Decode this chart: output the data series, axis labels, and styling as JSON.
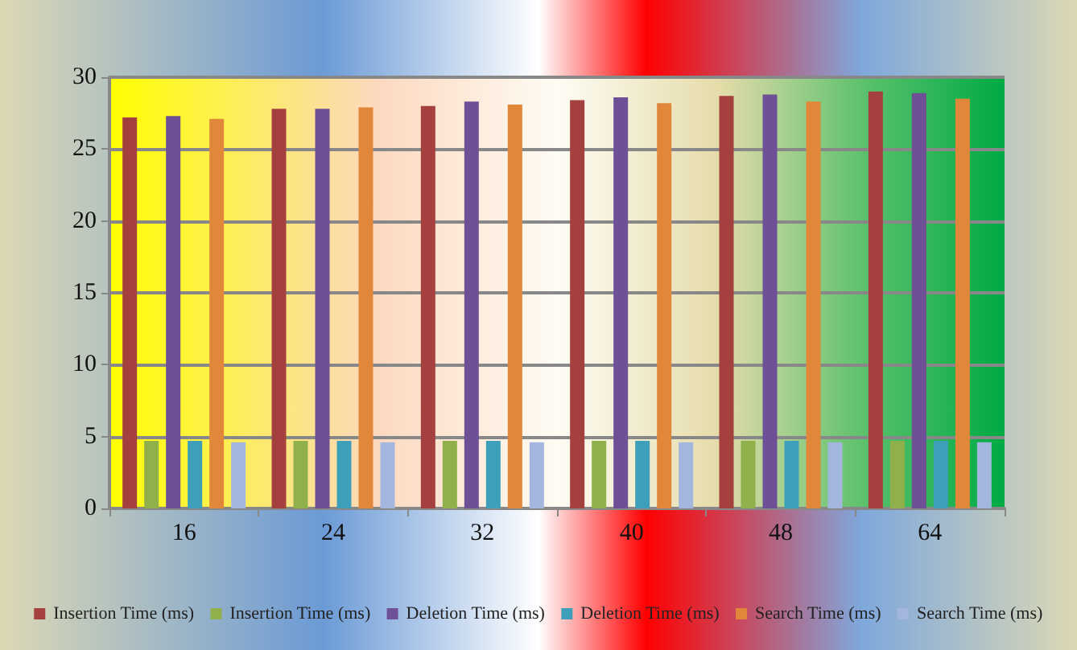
{
  "chart_data": {
    "type": "bar",
    "categories": [
      "16",
      "24",
      "32",
      "40",
      "48",
      "64"
    ],
    "series": [
      {
        "name": "Insertion Time (ms)",
        "color": "#a4403e",
        "values": [
          27.2,
          27.8,
          28.0,
          28.4,
          28.7,
          29.0
        ]
      },
      {
        "name": "Insertion Time (ms)",
        "color": "#8fb04a",
        "values": [
          4.7,
          4.7,
          4.7,
          4.7,
          4.7,
          4.7
        ]
      },
      {
        "name": "Deletion Time (ms)",
        "color": "#6e5096",
        "values": [
          27.3,
          27.8,
          28.3,
          28.6,
          28.8,
          28.9
        ]
      },
      {
        "name": "Deletion Time (ms)",
        "color": "#3e9fba",
        "values": [
          4.7,
          4.7,
          4.7,
          4.7,
          4.7,
          4.7
        ]
      },
      {
        "name": "Search Time (ms)",
        "color": "#e0873a",
        "values": [
          27.1,
          27.9,
          28.1,
          28.2,
          28.3,
          28.5
        ]
      },
      {
        "name": "Search Time (ms)",
        "color": "#a3b6dd",
        "values": [
          4.6,
          4.6,
          4.6,
          4.6,
          4.6,
          4.6
        ]
      }
    ],
    "ylim": [
      0,
      30
    ],
    "yticks": [
      0,
      5,
      10,
      15,
      20,
      25,
      30
    ],
    "grid": "y",
    "legend": "bottom"
  }
}
